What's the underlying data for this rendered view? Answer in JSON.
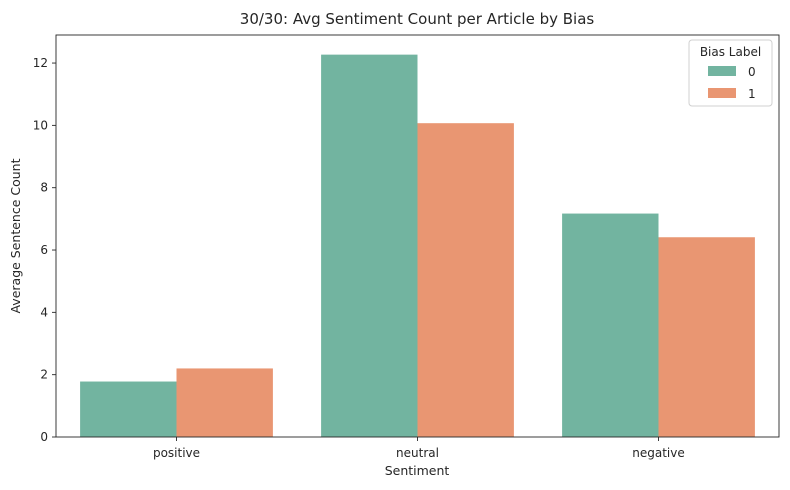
{
  "chart_data": {
    "type": "bar",
    "title": "30/30: Avg Sentiment Count per Article by Bias",
    "xlabel": "Sentiment",
    "ylabel": "Average Sentence Count",
    "categories": [
      "positive",
      "neutral",
      "negative"
    ],
    "series": [
      {
        "name": "0",
        "values": [
          1.78,
          12.27,
          7.17
        ],
        "color": "#72b4a0"
      },
      {
        "name": "1",
        "values": [
          2.2,
          10.07,
          6.41
        ],
        "color": "#e99672"
      }
    ],
    "ylim": [
      0,
      12.9
    ],
    "yticks": [
      0,
      2,
      4,
      6,
      8,
      10,
      12
    ],
    "legend": {
      "title": "Bias Label",
      "placement": "top-right"
    },
    "grid": false
  }
}
